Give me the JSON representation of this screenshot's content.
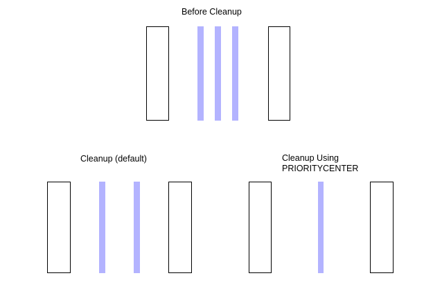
{
  "colors": {
    "bar": "#b3b3ff",
    "box_border": "#000000",
    "background": "#ffffff"
  },
  "panels": {
    "before": {
      "title": "Before Cleanup"
    },
    "default": {
      "title": "Cleanup (default)"
    },
    "prioritycenter": {
      "title_line1": "Cleanup Using",
      "title_line2": "PRIORITYCENTER"
    }
  }
}
